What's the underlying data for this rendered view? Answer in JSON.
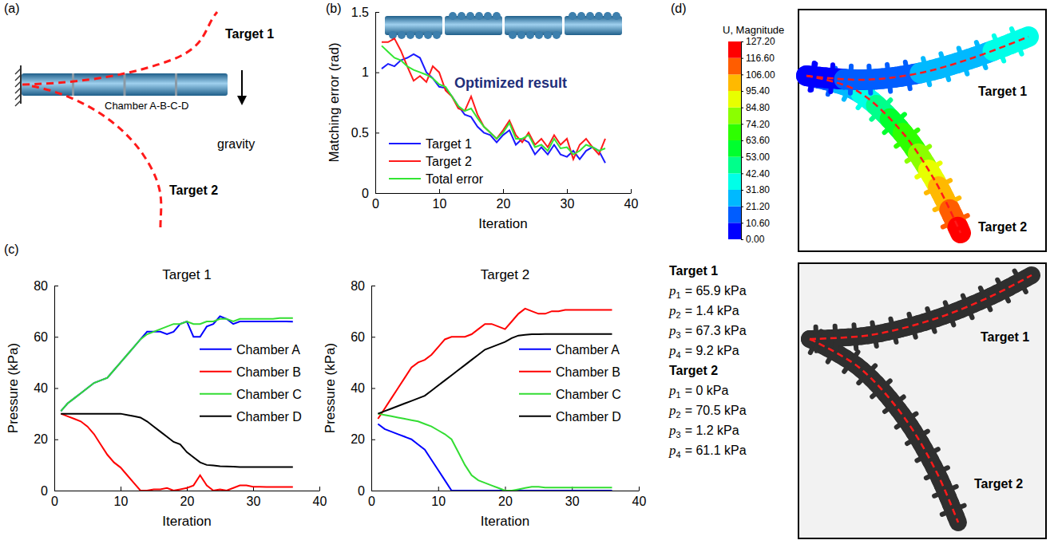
{
  "chart_data": [
    {
      "type": "line",
      "x_label": "Iteration",
      "y_label": "Matching error (rad)",
      "annotations": [
        "Optimized result"
      ],
      "x": [
        1,
        2,
        3,
        4,
        5,
        6,
        7,
        8,
        9,
        10,
        11,
        12,
        13,
        14,
        15,
        16,
        17,
        18,
        19,
        20,
        21,
        22,
        23,
        24,
        25,
        26,
        27,
        28,
        29,
        30,
        31,
        32,
        33,
        34,
        35,
        36
      ],
      "xlim": [
        0,
        40
      ],
      "xticks": [
        0,
        10,
        20,
        30,
        40
      ],
      "ylim": [
        0,
        1.5
      ],
      "yticks": [
        0,
        0.5,
        1,
        1.5
      ],
      "legend": "lower left",
      "series": [
        {
          "name": "Target 1",
          "color": "#1a1aff",
          "values": [
            1.03,
            1.07,
            1.05,
            1.1,
            1.12,
            1.15,
            1.12,
            1.0,
            0.95,
            0.88,
            0.87,
            0.8,
            0.72,
            0.65,
            0.63,
            0.55,
            0.5,
            0.48,
            0.42,
            0.48,
            0.52,
            0.4,
            0.45,
            0.42,
            0.32,
            0.38,
            0.32,
            0.4,
            0.32,
            0.3,
            0.35,
            0.28,
            0.35,
            0.38,
            0.35,
            0.25
          ]
        },
        {
          "name": "Target 2",
          "color": "#ff1a1a",
          "values": [
            1.25,
            1.25,
            1.28,
            1.18,
            1.05,
            0.93,
            0.97,
            0.92,
            1.05,
            1.0,
            0.85,
            0.8,
            0.7,
            0.68,
            0.8,
            0.65,
            0.55,
            0.5,
            0.45,
            0.52,
            0.6,
            0.48,
            0.42,
            0.5,
            0.4,
            0.45,
            0.38,
            0.48,
            0.4,
            0.45,
            0.28,
            0.4,
            0.45,
            0.38,
            0.32,
            0.45
          ]
        },
        {
          "name": "Total error",
          "color": "#33e633",
          "values": [
            1.22,
            1.17,
            1.12,
            1.1,
            1.05,
            1.02,
            1.0,
            0.98,
            0.95,
            0.9,
            0.88,
            0.8,
            0.72,
            0.68,
            0.7,
            0.62,
            0.55,
            0.5,
            0.45,
            0.5,
            0.58,
            0.45,
            0.45,
            0.48,
            0.38,
            0.4,
            0.35,
            0.45,
            0.37,
            0.38,
            0.32,
            0.35,
            0.4,
            0.38,
            0.35,
            0.37
          ]
        }
      ]
    },
    {
      "type": "line",
      "title": "Target 1",
      "x_label": "Iteration",
      "y_label": "Pressure (kPa)",
      "x": [
        1,
        2,
        3,
        4,
        5,
        6,
        7,
        8,
        9,
        10,
        11,
        12,
        13,
        14,
        15,
        16,
        17,
        18,
        19,
        20,
        21,
        22,
        23,
        24,
        25,
        26,
        27,
        28,
        29,
        30,
        31,
        32,
        33,
        34,
        35,
        36
      ],
      "xlim": [
        0,
        40
      ],
      "xticks": [
        0,
        10,
        20,
        30,
        40
      ],
      "ylim": [
        0,
        80
      ],
      "yticks": [
        0,
        20,
        40,
        60,
        80
      ],
      "legend": "right",
      "series": [
        {
          "name": "Chamber A",
          "color": "#0000ff",
          "values": [
            31,
            34,
            36,
            38,
            40,
            42,
            43,
            44,
            47,
            50,
            53,
            56,
            59,
            62,
            62,
            62,
            61,
            62,
            65,
            66,
            60,
            60,
            64,
            65,
            68,
            67,
            65,
            66,
            66,
            66,
            66,
            66,
            66,
            66,
            66,
            65.9
          ]
        },
        {
          "name": "Chamber B",
          "color": "#ff0000",
          "values": [
            30,
            29,
            28,
            27,
            25,
            22,
            18,
            14,
            11,
            9,
            6,
            3,
            0,
            0,
            0.5,
            0.5,
            1,
            0,
            0.5,
            1,
            2,
            6,
            2,
            0,
            0.5,
            0,
            1,
            2,
            2,
            1.5,
            1.5,
            1.4,
            1.4,
            1.4,
            1.4,
            1.4
          ]
        },
        {
          "name": "Chamber C",
          "color": "#33dd33",
          "values": [
            31,
            34,
            36,
            38,
            40,
            42,
            43,
            44,
            47,
            50,
            53,
            56,
            59,
            61,
            62,
            63,
            64,
            65,
            65,
            66,
            65,
            65,
            66,
            66,
            67,
            67,
            66,
            67,
            67,
            67,
            67,
            67,
            67,
            67.3,
            67.3,
            67.3
          ]
        },
        {
          "name": "Chamber D",
          "color": "#000000",
          "values": [
            30,
            30,
            30,
            30,
            30,
            30,
            30,
            30,
            30,
            30,
            29.5,
            29,
            28.5,
            27,
            25,
            23,
            21,
            19,
            18,
            15,
            13,
            11,
            10,
            9.8,
            9.5,
            9.4,
            9.3,
            9.2,
            9.2,
            9.2,
            9.2,
            9.2,
            9.2,
            9.2,
            9.2,
            9.2
          ]
        }
      ]
    },
    {
      "type": "line",
      "title": "Target 2",
      "x_label": "Iteration",
      "y_label": "Pressure (kPa)",
      "x": [
        1,
        2,
        3,
        4,
        5,
        6,
        7,
        8,
        9,
        10,
        11,
        12,
        13,
        14,
        15,
        16,
        17,
        18,
        19,
        20,
        21,
        22,
        23,
        24,
        25,
        26,
        27,
        28,
        29,
        30,
        31,
        32,
        33,
        34,
        35,
        36
      ],
      "xlim": [
        0,
        40
      ],
      "xticks": [
        0,
        10,
        20,
        30,
        40
      ],
      "ylim": [
        0,
        80
      ],
      "yticks": [
        0,
        20,
        40,
        60,
        80
      ],
      "legend": "right",
      "series": [
        {
          "name": "Chamber A",
          "color": "#0000ff",
          "values": [
            26,
            24,
            23,
            22,
            21,
            20,
            18,
            16,
            12,
            8,
            4,
            0,
            0,
            0,
            0,
            0,
            0,
            0,
            0,
            0,
            0,
            0,
            0,
            0,
            0,
            0,
            0,
            0,
            0,
            0,
            0,
            0,
            0,
            0,
            0,
            0
          ]
        },
        {
          "name": "Chamber B",
          "color": "#ff0000",
          "values": [
            28,
            32,
            36,
            40,
            44,
            48,
            50,
            51,
            53,
            56,
            59,
            60,
            60,
            60,
            61,
            63,
            65,
            65,
            64,
            63,
            66,
            69,
            71,
            70,
            69,
            69,
            70,
            70,
            70.5,
            70.5,
            70.5,
            70.5,
            70.5,
            70.5,
            70.5,
            70.5
          ]
        },
        {
          "name": "Chamber C",
          "color": "#33dd33",
          "values": [
            30,
            29.5,
            29,
            28.5,
            28,
            27.5,
            27,
            26,
            25,
            23.5,
            22,
            20,
            15,
            10,
            6,
            4,
            3,
            2,
            1,
            0,
            0,
            0.5,
            1,
            1.5,
            1.5,
            1.2,
            1.2,
            1.2,
            1.2,
            1.2,
            1.2,
            1.2,
            1.2,
            1.2,
            1.2,
            1.2
          ]
        },
        {
          "name": "Chamber D",
          "color": "#000000",
          "values": [
            30,
            31,
            32,
            33,
            34,
            35,
            36,
            37,
            39,
            41,
            43,
            45,
            47,
            49,
            51,
            53,
            55,
            56,
            57,
            58,
            59.5,
            60.5,
            60.8,
            61,
            61,
            61.1,
            61.1,
            61.1,
            61.1,
            61.1,
            61.1,
            61.1,
            61.1,
            61.1,
            61.1,
            61.1
          ]
        }
      ]
    }
  ],
  "panels": {
    "a": {
      "label": "(a)",
      "targets": [
        "Target 1",
        "Target 2"
      ],
      "actuator_label": "Chamber A-B-C-D",
      "gravity_label": "gravity"
    },
    "b": {
      "label": "(b)"
    },
    "c": {
      "label": "(c)"
    },
    "d": {
      "label": "(d)",
      "colorbar": {
        "title": "U, Magnitude",
        "range": [
          0,
          127.2
        ],
        "ticks": [
          {
            "value": 0,
            "label": "0.00"
          },
          {
            "value": 10.6,
            "label": "10.60"
          },
          {
            "value": 21.2,
            "label": "21.20"
          },
          {
            "value": 31.8,
            "label": "31.80"
          },
          {
            "value": 42.4,
            "label": "42.40"
          },
          {
            "value": 53,
            "label": "53.00"
          },
          {
            "value": 63.6,
            "label": "63.60"
          },
          {
            "value": 74.2,
            "label": "74.20"
          },
          {
            "value": 84.8,
            "label": "84.80"
          },
          {
            "value": 95.4,
            "label": "95.40"
          },
          {
            "value": 106,
            "label": "106.00"
          },
          {
            "value": 116.6,
            "label": "116.60"
          },
          {
            "value": 127.2,
            "label": "127.20"
          }
        ]
      },
      "simulation_labels": [
        "Target 1",
        "Target 2"
      ],
      "photo_labels": [
        "Target 1",
        "Target 2"
      ],
      "pressures": [
        {
          "target": "Target 1",
          "items": [
            {
              "symbol": "p",
              "subscript": "1",
              "text": "= 65.9 kPa"
            },
            {
              "symbol": "p",
              "subscript": "2",
              "text": "= 1.4 kPa"
            },
            {
              "symbol": "p",
              "subscript": "3",
              "text": "= 67.3 kPa"
            },
            {
              "symbol": "p",
              "subscript": "4",
              "text": "= 9.2 kPa"
            }
          ]
        },
        {
          "target": "Target 2",
          "items": [
            {
              "symbol": "p",
              "subscript": "1",
              "text": "= 0 kPa"
            },
            {
              "symbol": "p",
              "subscript": "2",
              "text": "= 70.5 kPa"
            },
            {
              "symbol": "p",
              "subscript": "3",
              "text": "= 1.2 kPa"
            },
            {
              "symbol": "p",
              "subscript": "4",
              "text": "= 61.1 kPa"
            }
          ]
        }
      ]
    }
  }
}
